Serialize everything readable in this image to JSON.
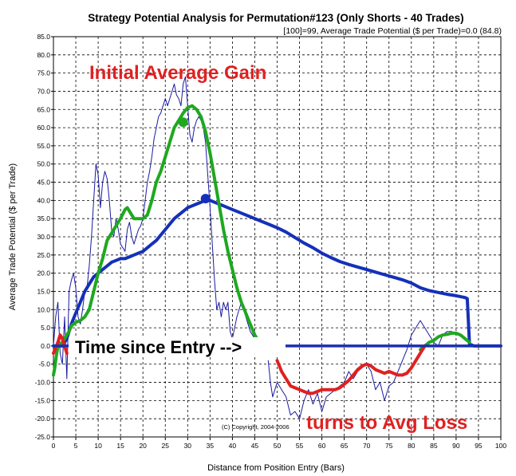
{
  "chart_data": {
    "type": "line",
    "title": "Strategy Potential Analysis for Permutation#123 (Only Shorts - 40 Trades)",
    "subtitle": "[100]=99,   Average Trade Potential ($ per Trade)=0.0 (84.8)",
    "xlabel": "Distance from Position Entry (Bars)",
    "ylabel": "Average Trade Potential ($ per Trade)",
    "xlim": [
      0,
      100
    ],
    "ylim": [
      -25,
      85
    ],
    "x_ticks": [
      "0",
      "5",
      "10",
      "15",
      "20",
      "25",
      "30",
      "35",
      "40",
      "45",
      "50",
      "55",
      "60",
      "65",
      "70",
      "75",
      "80",
      "85",
      "90",
      "95",
      "100"
    ],
    "y_ticks": [
      "-25.0",
      "-20.0",
      "-15.0",
      "-10.0",
      "-5.0",
      "0.0",
      "5.0",
      "10.0",
      "15.0",
      "20.0",
      "25.0",
      "30.0",
      "35.0",
      "40.0",
      "45.0",
      "50.0",
      "55.0",
      "60.0",
      "65.0",
      "70.0",
      "75.0",
      "80.0",
      "85.0"
    ],
    "grid": true,
    "annotations": {
      "initial_gain": "Initial Average Gain",
      "time_since_entry": "Time since Entry -->",
      "turns_to_loss": "turns to Avg Loss",
      "copyright": "(C) Copyright, 2004-2006"
    },
    "colors": {
      "thin_blue": "#1a1aa0",
      "thick_blue": "#1530b8",
      "green": "#1fa81f",
      "red": "#e02020",
      "zero_line": "#1a2fb0"
    },
    "series": [
      {
        "style": "thin-blue",
        "x": [
          0,
          0.5,
          1,
          1.5,
          2,
          2.5,
          3,
          3.5,
          4,
          4.5,
          5,
          5.5,
          6,
          6.5,
          7,
          7.5,
          8,
          8.5,
          9,
          9.5,
          10,
          10.5,
          11,
          11.5,
          12,
          12.5,
          13,
          13.5,
          14,
          14.5,
          15,
          15.5,
          16,
          16.5,
          17,
          17.5,
          18,
          18.5,
          19,
          19.5,
          20,
          20.5,
          21,
          21.5,
          22,
          22.5,
          23,
          23.5,
          24,
          24.5,
          25,
          25.5,
          26,
          26.5,
          27,
          27.5,
          28,
          28.5,
          29,
          29.5,
          30,
          30.5,
          31,
          31.5,
          32,
          32.5,
          33,
          33.5,
          34,
          34.5,
          35,
          35.5,
          36,
          36.5,
          37,
          37.5,
          38,
          38.5,
          39,
          39.5,
          40,
          41,
          42,
          43,
          44,
          45,
          46,
          47
        ],
        "y": [
          0,
          8,
          12,
          -2,
          -5,
          8,
          -9,
          15,
          18,
          20,
          16,
          8,
          6,
          10,
          15,
          16,
          22,
          30,
          40,
          50,
          47,
          38,
          45,
          48,
          46,
          40,
          32,
          30,
          35,
          32,
          28,
          27,
          26,
          32,
          34,
          30,
          28,
          30,
          32,
          33,
          35,
          40,
          45,
          48,
          52,
          57,
          60,
          63,
          64,
          66,
          68,
          66,
          68,
          70,
          72,
          69,
          68,
          66,
          72,
          74,
          66,
          58,
          56,
          60,
          62,
          63,
          62,
          60,
          56,
          47,
          38,
          28,
          18,
          10,
          12,
          8,
          12,
          10,
          12,
          4,
          2,
          8,
          12,
          8,
          4,
          2,
          1,
          0
        ]
      },
      {
        "style": "thin-blue",
        "x": [
          48,
          48.5,
          49,
          49.5,
          50,
          51,
          52,
          53,
          54,
          55,
          56,
          57,
          58,
          59,
          60,
          61,
          62,
          63,
          64,
          65,
          66,
          67,
          68,
          69,
          70,
          71,
          72,
          73,
          74,
          75,
          76,
          77,
          78,
          79,
          80,
          81,
          82,
          83,
          84,
          85,
          86,
          87,
          88,
          89,
          90
        ],
        "y": [
          -4,
          -10,
          -14,
          -12,
          -10,
          -12,
          -14,
          -19,
          -18,
          -20,
          -15,
          -12,
          -16,
          -13,
          -18,
          -14,
          -13,
          -12,
          -11,
          -10,
          -7,
          -9,
          -7,
          -6,
          -5,
          -7,
          -12,
          -10,
          -15,
          -11,
          -10,
          -7,
          -4,
          -1,
          3,
          5,
          7,
          5,
          3,
          1,
          0,
          3,
          4,
          4,
          3
        ]
      },
      {
        "style": "thick-blue",
        "x": [
          0,
          2,
          3,
          4,
          5,
          6,
          7,
          8,
          9,
          10,
          11,
          12,
          13,
          14,
          15,
          16,
          17,
          18,
          19,
          20,
          21,
          22,
          23,
          24,
          25,
          26,
          27,
          28,
          29,
          30,
          31,
          32,
          33,
          34,
          35,
          36,
          38,
          40,
          42,
          44,
          46,
          48,
          50,
          52,
          54,
          56,
          58,
          60,
          62,
          64,
          66,
          68,
          70,
          72,
          74,
          76,
          78,
          80,
          82,
          84,
          86,
          88,
          90,
          92,
          92.5,
          93,
          94,
          100
        ],
        "y": [
          0,
          0,
          2,
          6,
          9,
          12,
          15,
          17,
          19,
          20,
          21,
          22,
          23,
          23.5,
          24,
          24,
          24.5,
          25,
          25.5,
          26,
          27,
          28,
          29,
          30.5,
          32,
          33.5,
          35,
          36,
          37,
          38,
          38.5,
          39,
          39.5,
          40,
          40,
          39.5,
          38.5,
          37.5,
          36.5,
          35.5,
          34.5,
          33.5,
          32.5,
          31.3,
          29.8,
          28.3,
          27,
          25.5,
          24.3,
          23.2,
          22.4,
          21.7,
          21,
          20.3,
          19.6,
          18.9,
          18.2,
          17.3,
          16,
          15.2,
          14.7,
          14.2,
          13.8,
          13.3,
          13,
          0.5,
          0,
          0
        ]
      },
      {
        "style": "green",
        "x": [
          0,
          0.3,
          0.6,
          1,
          1.5,
          2,
          2.5,
          3,
          3.5,
          4,
          5,
          6,
          7,
          8,
          9,
          10,
          11,
          12,
          13,
          14,
          15,
          16,
          16.5,
          17,
          18,
          19,
          20,
          21,
          22,
          23,
          24,
          25,
          26,
          27,
          28,
          29,
          30,
          31,
          32,
          33,
          34,
          35,
          36,
          37,
          38,
          39,
          40,
          41,
          42,
          43,
          44,
          45,
          46,
          47
        ],
        "y": [
          -8,
          -6,
          -3,
          0,
          0.5,
          1,
          2,
          3,
          4,
          5.5,
          6.5,
          7,
          8,
          10,
          15,
          20,
          24,
          29,
          31,
          33,
          35,
          37.5,
          38,
          37,
          35,
          35,
          35,
          36,
          40,
          45,
          48,
          52,
          56,
          60,
          62,
          64,
          65.5,
          66,
          65,
          63,
          59,
          53,
          46,
          39,
          32,
          26,
          21,
          16,
          12,
          9,
          6,
          3,
          1,
          0
        ]
      },
      {
        "style": "green",
        "x": [
          82,
          83,
          84,
          85,
          86,
          87,
          88,
          89,
          90,
          91,
          92,
          93
        ],
        "y": [
          -1,
          0,
          1,
          1.5,
          2.5,
          3,
          3.2,
          3.5,
          3.5,
          3,
          2,
          1
        ]
      },
      {
        "style": "red",
        "x": [
          0,
          1,
          1.5,
          2,
          3
        ],
        "y": [
          -2,
          1,
          3,
          2,
          -2
        ]
      },
      {
        "style": "red",
        "x": [
          50,
          51,
          52,
          53,
          54,
          55,
          56,
          57,
          58,
          59,
          60,
          61,
          62,
          63,
          64,
          65,
          66,
          67,
          68,
          69,
          70,
          71,
          72,
          73,
          74,
          75,
          76,
          77,
          78,
          79,
          80,
          81,
          82,
          83
        ],
        "y": [
          -4,
          -7,
          -9,
          -11,
          -11.5,
          -12,
          -12.5,
          -13,
          -13,
          -12.5,
          -12,
          -12,
          -12,
          -12,
          -11.5,
          -10.5,
          -9.5,
          -8,
          -6.5,
          -5.5,
          -5,
          -5.5,
          -6.5,
          -7,
          -7.5,
          -7,
          -7.5,
          -8,
          -8,
          -7.5,
          -6,
          -4,
          -2,
          0
        ]
      }
    ],
    "markers": [
      {
        "color": "green",
        "x": 29,
        "y": 61.5
      },
      {
        "color": "blue",
        "x": 34,
        "y": 40.5
      }
    ]
  }
}
